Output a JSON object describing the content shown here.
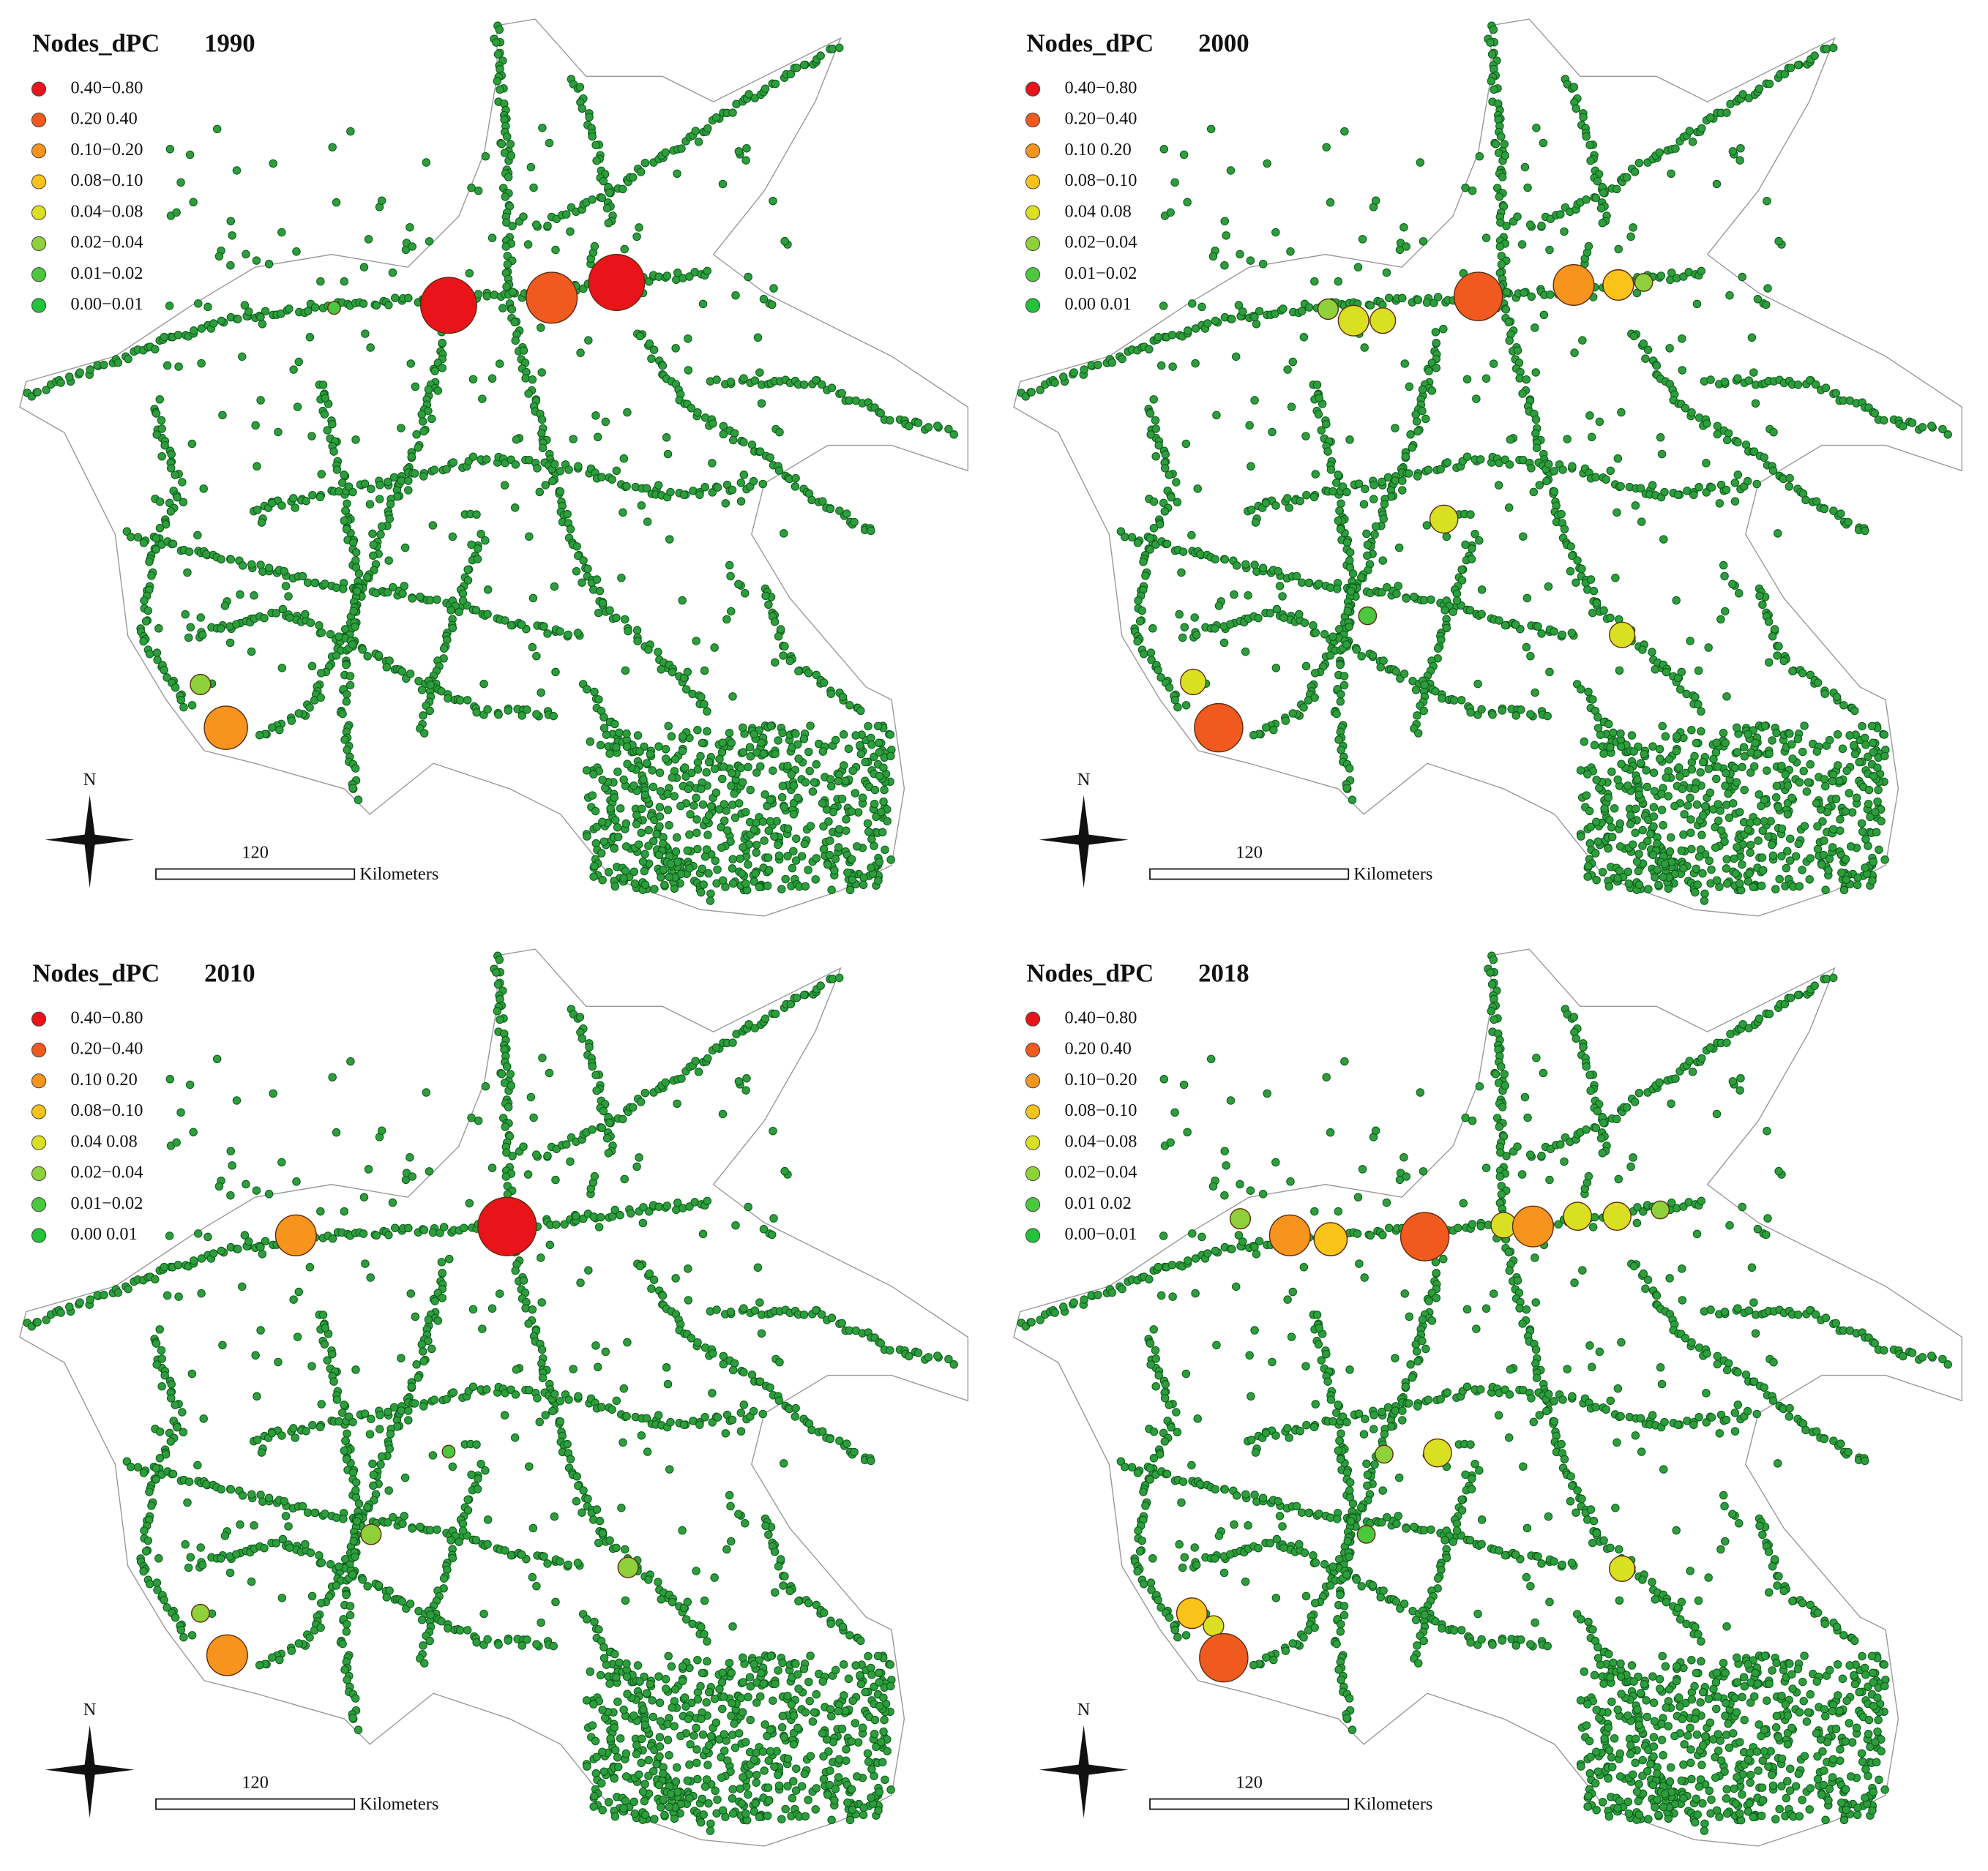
{
  "panels": [
    {
      "title": "Nodes_dPC",
      "year": "1990",
      "legend": {
        "labels": [
          "0.40−0.80",
          "0.20 0.40",
          "0.10−0.20",
          "0.08−0.10",
          "0.04−0.08",
          "0.02−0.04",
          "0.01−0.02",
          "0.00−0.01"
        ]
      },
      "scale_bar": {
        "distance": "120",
        "unit": "Kilometers"
      },
      "north": "N"
    },
    {
      "title": "Nodes_dPC",
      "year": "2000",
      "legend": {
        "labels": [
          "0.40−0.80",
          "0.20−0.40",
          "0.10 0.20",
          "0.08−0.10",
          "0.04 0.08",
          "0.02−0.04",
          "0.01−0.02",
          "0.00 0.01"
        ]
      },
      "scale_bar": {
        "distance": "120",
        "unit": "Kilometers"
      },
      "north": "N"
    },
    {
      "title": "Nodes_dPC",
      "year": "2010",
      "legend": {
        "labels": [
          "0.40−0.80",
          "0.20−0.40",
          "0.10 0.20",
          "0.08−0.10",
          "0.04 0.08",
          "0.02−0.04",
          "0.01−0.02",
          "0.00 0.01"
        ]
      },
      "scale_bar": {
        "distance": "120",
        "unit": "Kilometers"
      },
      "north": "N"
    },
    {
      "title": "Nodes_dPC",
      "year": "2018",
      "legend": {
        "labels": [
          "0.40−0.80",
          "0.20 0.40",
          "0.10−0.20",
          "0.08−0.10",
          "0.04−0.08",
          "0.02−0.04",
          "0.01 0.02",
          "0.00−0.01"
        ]
      },
      "scale_bar": {
        "distance": "120",
        "unit": "Kilometers"
      },
      "north": "N"
    }
  ],
  "legend_colors": [
    "#e8141a",
    "#f05a1e",
    "#f7941d",
    "#f9c31a",
    "#d9e021",
    "#8fd13a",
    "#4cc83f",
    "#22c33a"
  ]
}
